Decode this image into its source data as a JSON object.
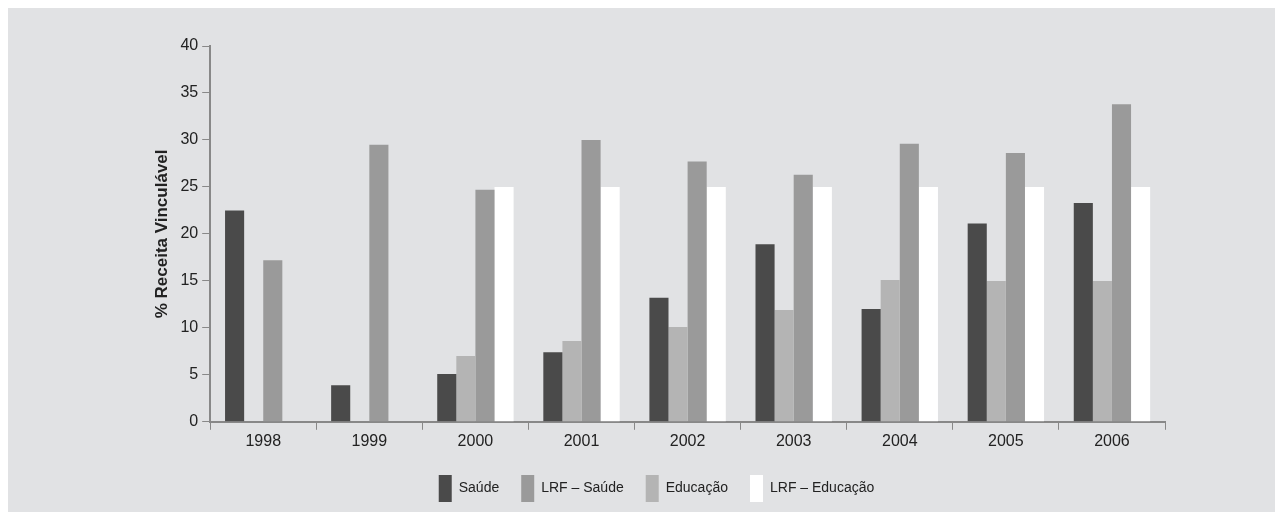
{
  "chart_data": {
    "type": "bar",
    "ylabel": "% Receita Vinculável",
    "categories": [
      "1998",
      "1999",
      "2000",
      "2001",
      "2002",
      "2003",
      "2004",
      "2005",
      "2006"
    ],
    "series": [
      {
        "name": "Saúde",
        "color": "#4a4a4a",
        "values": [
          22.5,
          3.9,
          5.1,
          7.4,
          13.2,
          18.9,
          12.0,
          21.1,
          23.3
        ]
      },
      {
        "name": "Educação",
        "color": "#b4b4b4",
        "values": [
          null,
          null,
          7.0,
          8.6,
          10.1,
          11.9,
          15.1,
          15.0,
          15.0
        ]
      },
      {
        "name": "LRF – Saúde",
        "color": "#9a9a9a",
        "values": [
          17.2,
          29.5,
          24.7,
          30.0,
          27.7,
          26.3,
          29.6,
          28.6,
          33.8
        ]
      },
      {
        "name": "LRF – Educação",
        "color": "#ffffff",
        "values": [
          null,
          null,
          25.0,
          25.0,
          25.0,
          25.0,
          25.0,
          25.0,
          25.0
        ]
      }
    ],
    "ylim": [
      0,
      40
    ],
    "yticks": [
      0,
      5,
      10,
      15,
      20,
      25,
      30,
      35,
      40
    ],
    "grid": false,
    "legend": "bottom"
  }
}
